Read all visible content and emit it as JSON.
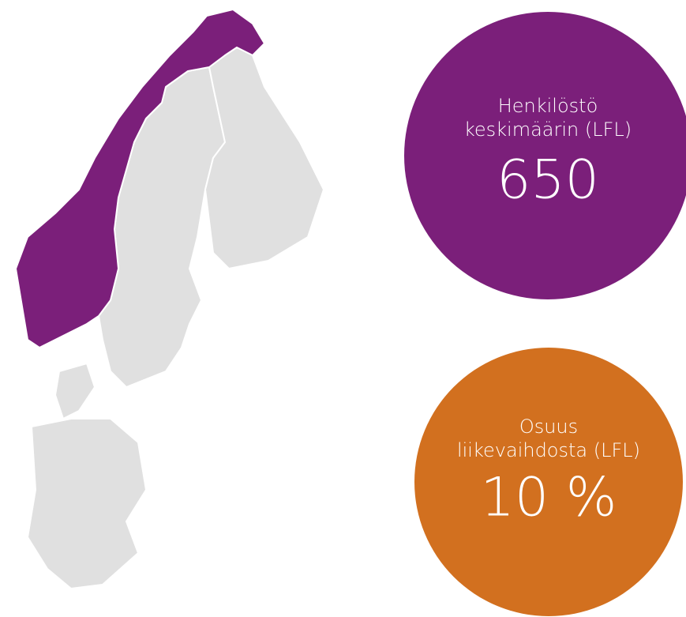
{
  "stats": [
    {
      "label_lines": [
        "Henkilöstö",
        "keskimäärin (LFL)"
      ],
      "value": "650"
    },
    {
      "label_lines": [
        "Osuus",
        "liikevaihdosta (LFL)"
      ],
      "value": "10 %"
    }
  ]
}
